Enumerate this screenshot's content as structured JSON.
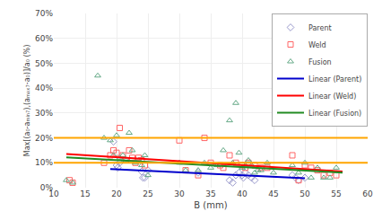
{
  "chart_data": {
    "type": "scatter",
    "xlabel": "B (mm)",
    "ylabel": "Max[(a₀-aₘᵢₙ₇),(aₘₐₓ₇-a₀)]/a₀ (%)",
    "xlim": [
      10,
      60
    ],
    "ylim": [
      0,
      0.7
    ],
    "xticks": [
      10,
      15,
      20,
      25,
      30,
      35,
      40,
      45,
      50,
      55,
      60
    ],
    "yticks": [
      {
        "value": 0,
        "label": "0%"
      },
      {
        "value": 0.1,
        "label": "10%"
      },
      {
        "value": 0.2,
        "label": "20%"
      },
      {
        "value": 0.3,
        "label": "30%"
      },
      {
        "value": 0.4,
        "label": "40%"
      },
      {
        "value": 0.5,
        "label": "50%"
      },
      {
        "value": 0.6,
        "label": "60%"
      },
      {
        "value": 0.7,
        "label": "70%"
      }
    ],
    "grid": true,
    "legend": "upper right",
    "series": [
      {
        "name": "Parent",
        "type": "scatter",
        "marker": "diamond-open",
        "color": "#9999CC",
        "x": [
          19.5,
          20.0,
          20.2,
          20.5,
          24.0,
          24.2,
          24.5,
          25.0,
          33.0,
          38.0,
          38.5,
          39.0,
          39.5,
          40.0,
          40.2,
          40.5,
          41.0,
          41.5,
          42.0,
          48.0,
          48.5,
          49.0,
          50.0
        ],
        "values": [
          0.185,
          0.09,
          0.08,
          0.1,
          0.065,
          0.04,
          0.04,
          0.07,
          0.06,
          0.03,
          0.02,
          0.05,
          0.06,
          0.05,
          0.04,
          0.06,
          0.05,
          0.04,
          0.03,
          0.05,
          0.04,
          0.03,
          0.04
        ]
      },
      {
        "name": "Weld",
        "type": "scatter",
        "marker": "square-open",
        "color": "#FF6666",
        "x": [
          12.5,
          13.0,
          18.0,
          19.0,
          19.5,
          20.0,
          20.5,
          21.0,
          21.5,
          22.0,
          22.5,
          23.0,
          23.5,
          24.0,
          24.5,
          30.0,
          31.0,
          33.0,
          34.0,
          35.0,
          36.5,
          37.0,
          38.0,
          39.0,
          40.0,
          40.5,
          41.0,
          42.0,
          43.0,
          44.0,
          48.0,
          49.0,
          50.0,
          51.0,
          52.0,
          53.0,
          54.0,
          55.0
        ],
        "values": [
          0.03,
          0.02,
          0.1,
          0.13,
          0.15,
          0.14,
          0.24,
          0.13,
          0.11,
          0.15,
          0.12,
          0.1,
          0.12,
          0.11,
          0.09,
          0.19,
          0.07,
          0.05,
          0.2,
          0.1,
          0.09,
          0.08,
          0.13,
          0.1,
          0.09,
          0.08,
          0.1,
          0.09,
          0.08,
          0.08,
          0.13,
          0.03,
          0.09,
          0.08,
          0.07,
          0.05,
          0.06,
          0.05
        ]
      },
      {
        "name": "Fusion",
        "type": "scatter",
        "marker": "triangle-up-open",
        "color": "#66AA88",
        "x": [
          12.0,
          13.0,
          17.0,
          18.0,
          19.0,
          19.5,
          20.0,
          20.5,
          21.0,
          21.5,
          22.0,
          22.5,
          23.0,
          23.5,
          24.0,
          24.5,
          25.0,
          30.0,
          31.0,
          33.0,
          34.0,
          35.0,
          36.0,
          37.0,
          38.0,
          38.5,
          39.0,
          39.5,
          40.0,
          40.5,
          41.0,
          41.5,
          42.0,
          42.5,
          43.0,
          44.0,
          45.0,
          48.0,
          49.0,
          50.0,
          51.0,
          52.0,
          53.0,
          54.0,
          55.0
        ],
        "values": [
          0.03,
          0.02,
          0.45,
          0.2,
          0.19,
          0.13,
          0.21,
          0.12,
          0.13,
          0.11,
          0.22,
          0.15,
          0.1,
          0.11,
          0.09,
          0.13,
          0.05,
          0.1,
          0.07,
          0.07,
          0.1,
          0.08,
          0.09,
          0.15,
          0.27,
          0.1,
          0.34,
          0.14,
          0.08,
          0.09,
          0.11,
          0.09,
          0.06,
          0.07,
          0.07,
          0.1,
          0.06,
          0.09,
          0.06,
          0.1,
          0.04,
          0.08,
          0.04,
          0.04,
          0.08
        ]
      },
      {
        "name": "Linear (Parent)",
        "type": "line",
        "color": "#0000CC",
        "x": [
          19,
          50
        ],
        "values": [
          0.075,
          0.038
        ]
      },
      {
        "name": "Linear (Weld)",
        "type": "line",
        "color": "#FF0000",
        "x": [
          12,
          56
        ],
        "values": [
          0.135,
          0.065
        ]
      },
      {
        "name": "Linear (Fusion)",
        "type": "line",
        "color": "#228B22",
        "x": [
          12,
          56
        ],
        "values": [
          0.122,
          0.06
        ]
      }
    ],
    "reference_lines": [
      {
        "y": 0.1,
        "color": "#FFA500"
      },
      {
        "y": 0.2,
        "color": "#FFA500"
      }
    ]
  }
}
